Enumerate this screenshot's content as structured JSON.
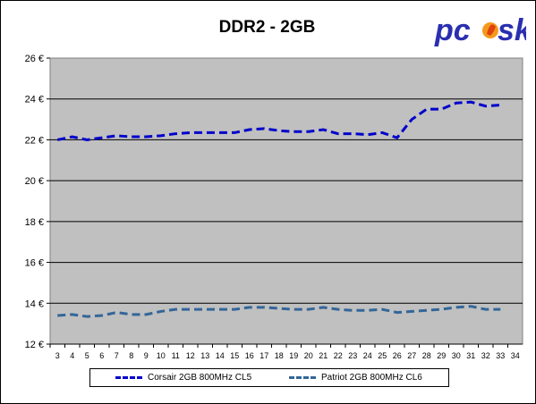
{
  "chart_data": {
    "type": "line",
    "title": "DDR2 - 2GB",
    "xlabel": "",
    "ylabel": "",
    "x": [
      3,
      4,
      5,
      6,
      7,
      8,
      9,
      10,
      11,
      12,
      13,
      14,
      15,
      16,
      17,
      18,
      19,
      20,
      21,
      22,
      23,
      24,
      25,
      26,
      27,
      28,
      29,
      30,
      31,
      32,
      33,
      34
    ],
    "ylim": [
      12,
      26
    ],
    "yticks": [
      "12 €",
      "14 €",
      "16 €",
      "18 €",
      "20 €",
      "22 €",
      "24 €",
      "26 €"
    ],
    "grid": "horizontal",
    "legend_position": "bottom",
    "series": [
      {
        "name": "Corsair 2GB 800MHz CL5",
        "color": "#0000cc",
        "values": [
          22.0,
          22.15,
          22.0,
          22.1,
          22.2,
          22.15,
          22.15,
          22.2,
          22.3,
          22.35,
          22.35,
          22.35,
          22.35,
          22.5,
          22.55,
          22.45,
          22.4,
          22.4,
          22.5,
          22.3,
          22.3,
          22.25,
          22.35,
          22.1,
          23.0,
          23.5,
          23.5,
          23.8,
          23.85,
          23.65,
          23.7,
          null
        ]
      },
      {
        "name": "Patriot 2GB 800MHz CL6",
        "color": "#336699",
        "values": [
          13.4,
          13.45,
          13.35,
          13.4,
          13.55,
          13.45,
          13.45,
          13.6,
          13.7,
          13.7,
          13.7,
          13.7,
          13.7,
          13.8,
          13.8,
          13.75,
          13.7,
          13.7,
          13.8,
          13.7,
          13.65,
          13.65,
          13.7,
          13.55,
          13.6,
          13.65,
          13.7,
          13.8,
          13.85,
          13.7,
          13.7,
          null
        ]
      }
    ]
  },
  "logo": {
    "text": "pc",
    "text2": "sk",
    "name": "pcsk-logo"
  }
}
